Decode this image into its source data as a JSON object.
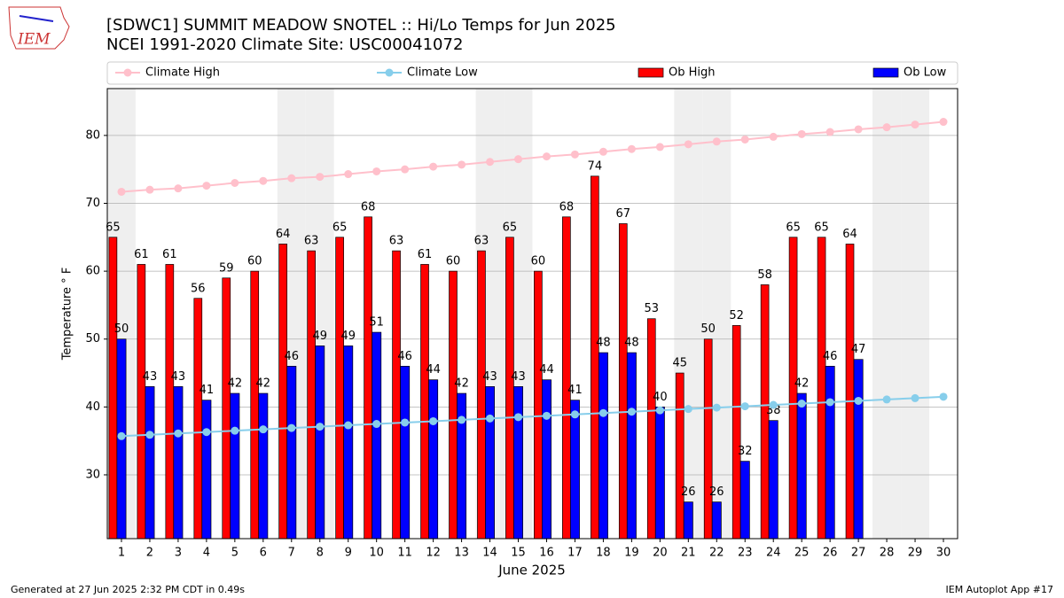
{
  "logo_text": "IEM",
  "footer_left": "Generated at 27 Jun 2025 2:32 PM CDT in 0.49s",
  "footer_right": "IEM Autoplot App #17",
  "chart_data": {
    "type": "bar",
    "title": "[SDWC1] SUMMIT MEADOW SNOTEL :: Hi/Lo Temps for Jun 2025",
    "subtitle": "NCEI 1991-2020 Climate Site: USC00041072",
    "x_label": "June 2025",
    "y_label": "Temperature ° F",
    "x": [
      1,
      2,
      3,
      4,
      5,
      6,
      7,
      8,
      9,
      10,
      11,
      12,
      13,
      14,
      15,
      16,
      17,
      18,
      19,
      20,
      21,
      22,
      23,
      24,
      25,
      26,
      27,
      28,
      29,
      30
    ],
    "xlim": [
      0.5,
      30.5
    ],
    "ylim": [
      20.6,
      86.9
    ],
    "yticks": [
      30,
      40,
      50,
      60,
      70,
      80
    ],
    "grid": true,
    "shaded_days": [
      1,
      7,
      8,
      14,
      15,
      21,
      22,
      28,
      29
    ],
    "shade_color": "#efefef",
    "series": [
      {
        "name": "Climate High",
        "type": "line",
        "color": "#ffc0cb",
        "values": [
          71.7,
          72.0,
          72.2,
          72.6,
          73.0,
          73.3,
          73.7,
          73.9,
          74.3,
          74.7,
          75.0,
          75.4,
          75.7,
          76.1,
          76.5,
          76.9,
          77.2,
          77.6,
          78.0,
          78.3,
          78.7,
          79.1,
          79.4,
          79.8,
          80.2,
          80.5,
          80.9,
          81.2,
          81.6,
          82.0
        ]
      },
      {
        "name": "Climate Low",
        "type": "line",
        "color": "#87ceeb",
        "values": [
          35.7,
          35.9,
          36.1,
          36.3,
          36.5,
          36.7,
          36.9,
          37.1,
          37.3,
          37.5,
          37.7,
          37.9,
          38.1,
          38.3,
          38.5,
          38.7,
          38.9,
          39.1,
          39.3,
          39.5,
          39.7,
          39.9,
          40.1,
          40.3,
          40.5,
          40.7,
          40.9,
          41.1,
          41.3,
          41.5
        ]
      },
      {
        "name": "Ob High",
        "type": "bar",
        "color": "#ff0000",
        "values": [
          65,
          61,
          61,
          56,
          59,
          60,
          64,
          63,
          65,
          68,
          63,
          61,
          60,
          63,
          65,
          60,
          68,
          74,
          67,
          53,
          45,
          50,
          52,
          58,
          65,
          65,
          64,
          null,
          null,
          null
        ]
      },
      {
        "name": "Ob Low",
        "type": "bar",
        "color": "#0000ff",
        "values": [
          50,
          43,
          43,
          41,
          42,
          42,
          46,
          49,
          49,
          51,
          46,
          44,
          42,
          43,
          43,
          44,
          41,
          48,
          48,
          40,
          26,
          26,
          32,
          38,
          42,
          46,
          47,
          null,
          null,
          null
        ]
      }
    ]
  }
}
